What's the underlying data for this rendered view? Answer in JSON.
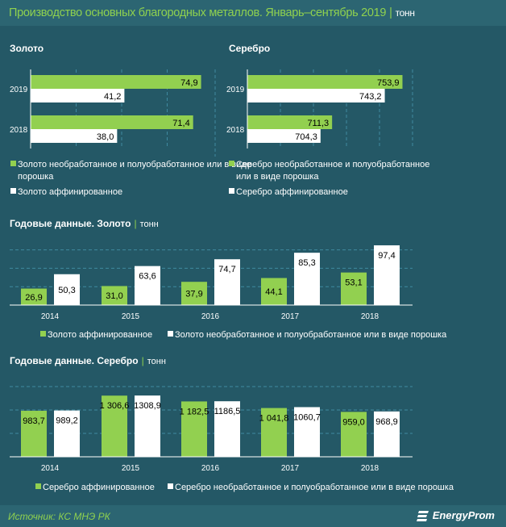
{
  "header": {
    "title": "Производство основных благородных металлов. Январь–сентябрь 2019",
    "separator": "|",
    "unit": "тонн"
  },
  "colors": {
    "background": "#245866",
    "header": "#2c6572",
    "green": "#92d050",
    "white": "#ffffff",
    "title": "#8fd14f"
  },
  "chart_data": [
    {
      "type": "bar",
      "orientation": "horizontal",
      "title": "Золото",
      "categories": [
        "2019",
        "2018"
      ],
      "xlim": [
        0,
        80
      ],
      "series": [
        {
          "name": "Золото необработанное и полуобработанное или в виде порошка",
          "color": "#92d050",
          "values": [
            74.9,
            71.4
          ],
          "labels": [
            "74,9",
            "71,4"
          ]
        },
        {
          "name": "Золото аффинированное",
          "color": "#ffffff",
          "values": [
            41.2,
            38.0
          ],
          "labels": [
            "41,2",
            "38,0"
          ]
        }
      ]
    },
    {
      "type": "bar",
      "orientation": "horizontal",
      "title": "Серебро",
      "categories": [
        "2019",
        "2018"
      ],
      "xlim": [
        660,
        760
      ],
      "series": [
        {
          "name": "Серебро необработанное и полуобработанное или в виде порошка",
          "color": "#92d050",
          "values": [
            753.9,
            711.3
          ],
          "labels": [
            "753,9",
            "711,3"
          ]
        },
        {
          "name": "Серебро аффинированное",
          "color": "#ffffff",
          "values": [
            743.2,
            704.3
          ],
          "labels": [
            "743,2",
            "704,3"
          ]
        }
      ]
    },
    {
      "type": "bar",
      "title": "Годовые данные. Золото",
      "unit": "тонн",
      "categories": [
        "2014",
        "2015",
        "2016",
        "2017",
        "2018"
      ],
      "ylim": [
        0,
        100
      ],
      "series": [
        {
          "name": "Золото аффинированное",
          "color": "#92d050",
          "values": [
            26.9,
            31.0,
            37.9,
            44.1,
            53.1
          ],
          "labels": [
            "26,9",
            "31,0",
            "37,9",
            "44,1",
            "53,1"
          ]
        },
        {
          "name": "Золото необработанное и полуобработанное или в виде порошка",
          "color": "#ffffff",
          "values": [
            50.3,
            63.6,
            74.7,
            85.3,
            97.4
          ],
          "labels": [
            "50,3",
            "63,6",
            "74,7",
            "85,3",
            "97,4"
          ]
        }
      ]
    },
    {
      "type": "bar",
      "title": "Годовые данные. Серебро",
      "unit": "тонн",
      "categories": [
        "2014",
        "2015",
        "2016",
        "2017",
        "2018"
      ],
      "ylim": [
        0,
        1500
      ],
      "series": [
        {
          "name": "Серебро аффинированное",
          "color": "#92d050",
          "values": [
            983.7,
            1306.6,
            1182.5,
            1041.8,
            959.0
          ],
          "labels": [
            "983,7",
            "1 306,6",
            "1 182,5",
            "1 041,8",
            "959,0"
          ]
        },
        {
          "name": "Серебро необработанное и полуобработанное или в виде порошка",
          "color": "#ffffff",
          "values": [
            989.2,
            1308.9,
            1186.5,
            1060.7,
            968.9
          ],
          "labels": [
            "989,2",
            "1308,9",
            "1186,5",
            "1060,7",
            "968,9"
          ]
        }
      ]
    }
  ],
  "legend_gold_top": {
    "line1": "Золото необработанное и полуобработанное или в виде",
    "line2": "порошка"
  },
  "legend_silver_top": {
    "line1": "Серебро необработанное и полуобработанное",
    "line2": "или  в виде порошка"
  },
  "footer": {
    "source": "Источник: КС МНЭ РК",
    "logo": "EnergyProm"
  }
}
